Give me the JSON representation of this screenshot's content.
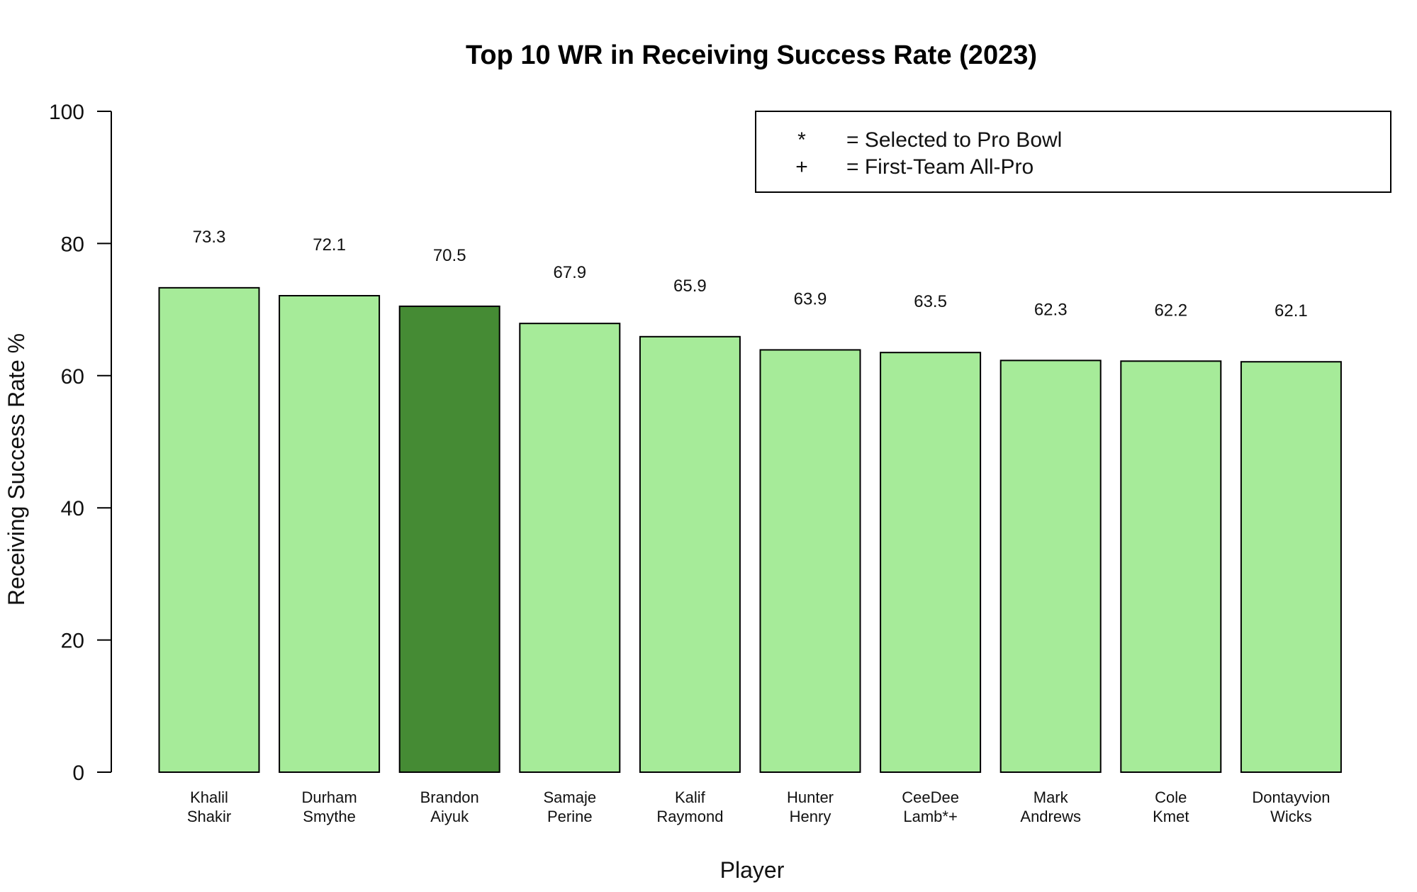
{
  "chart_data": {
    "type": "bar",
    "title": "Top 10 WR in Receiving Success Rate (2023)",
    "xlabel": "Player",
    "ylabel": "Receiving Success Rate %",
    "ylim": [
      0,
      100
    ],
    "yticks": [
      "0",
      "20",
      "40",
      "60",
      "80",
      "100"
    ],
    "categories": [
      [
        "Khalil",
        "Shakir"
      ],
      [
        "Durham",
        "Smythe"
      ],
      [
        "Brandon",
        "Aiyuk"
      ],
      [
        "Samaje",
        "Perine"
      ],
      [
        "Kalif",
        "Raymond"
      ],
      [
        "Hunter",
        "Henry"
      ],
      [
        "CeeDee",
        "Lamb*+"
      ],
      [
        "Mark",
        "Andrews"
      ],
      [
        "Cole",
        "Kmet"
      ],
      [
        "Dontayvion",
        "Wicks"
      ]
    ],
    "values": [
      73.3,
      72.1,
      70.5,
      67.9,
      65.9,
      63.9,
      63.5,
      62.3,
      62.2,
      62.1
    ],
    "value_labels": [
      "73.3",
      "72.1",
      "70.5",
      "67.9",
      "65.9",
      "63.9",
      "63.5",
      "62.3",
      "62.2",
      "62.1"
    ],
    "highlight_index": 2,
    "colors": {
      "bar": "#a6eb99",
      "highlight": "#458b34",
      "stroke": "#000000"
    },
    "grid": false,
    "legend": {
      "position": "top-right",
      "entries": [
        {
          "symbol": "*",
          "text": "= Selected to Pro Bowl"
        },
        {
          "symbol": "+",
          "text": "= First-Team All-Pro"
        }
      ]
    }
  }
}
